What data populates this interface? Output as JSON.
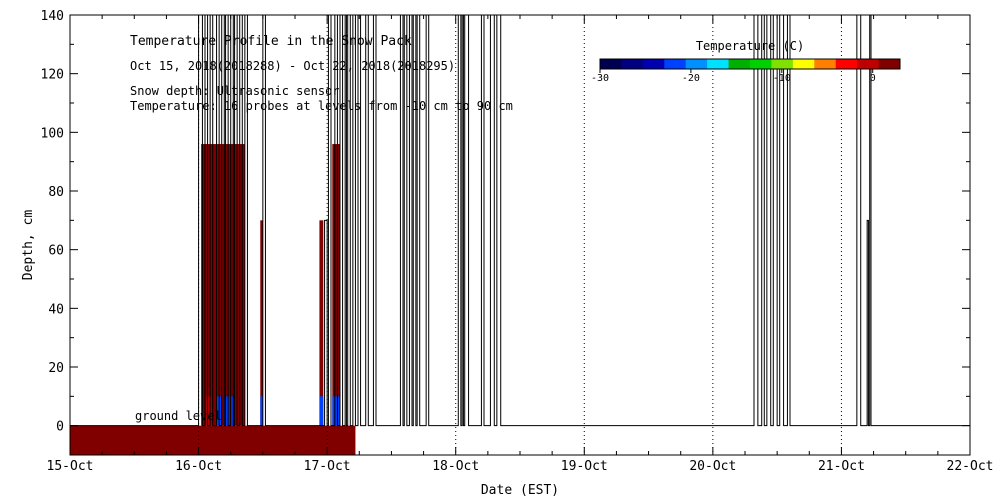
{
  "chart_data": {
    "type": "heatmap",
    "title": "Temperature Profile in the Snow Pack",
    "subtitle": "Oct 15, 2018(2018288) - Oct 22, 2018(2018295)",
    "notes": [
      "Snow depth: Ultrasonic sensor",
      "Temperature: 16 probes at levels from -10 cm to 90 cm"
    ],
    "ground_label": "ground level",
    "xlabel": "Date (EST)",
    "ylabel": "Depth, cm",
    "x_ticks": [
      "15-Oct",
      "16-Oct",
      "17-Oct",
      "18-Oct",
      "19-Oct",
      "20-Oct",
      "21-Oct",
      "22-Oct"
    ],
    "xlim_days": [
      0,
      7
    ],
    "ylim": [
      -10,
      140
    ],
    "y_ticks": [
      0,
      20,
      40,
      60,
      80,
      100,
      120,
      140
    ],
    "grid": false,
    "day_separators": "dotted",
    "colorbar": {
      "title": "Temperature (C)",
      "range": [
        -30,
        3
      ],
      "tick_values": [
        -30,
        -20,
        -10,
        0
      ],
      "tick_labels": [
        "-30",
        "-20",
        "-10",
        "0"
      ],
      "colors": [
        "#000050",
        "#000080",
        "#0000b0",
        "#0040ff",
        "#0090ff",
        "#00e0ff",
        "#00b000",
        "#00d000",
        "#80e000",
        "#ffff00",
        "#ff8000",
        "#ff0000",
        "#c00000",
        "#800000"
      ]
    },
    "snow_depth_trace": {
      "color": "#000000",
      "baseline_cm": 0,
      "spikes_start_day": [
        1.0,
        1.05,
        1.09,
        1.14,
        1.18,
        1.21,
        1.25,
        1.28,
        1.32,
        1.36,
        1.5,
        1.98,
        2.01,
        2.06,
        2.1,
        2.14,
        2.16,
        2.2,
        2.24,
        2.3,
        2.36,
        2.57,
        2.6,
        2.64,
        2.67,
        2.7,
        2.77,
        3.02,
        3.05,
        3.07,
        3.2,
        3.27,
        3.32,
        5.32,
        5.38,
        5.42,
        5.47,
        5.52,
        5.58,
        6.12,
        6.2,
        6.22
      ],
      "spikes_end_day": [
        1.03,
        1.07,
        1.11,
        1.16,
        1.2,
        1.23,
        1.27,
        1.3,
        1.34,
        1.38,
        1.52,
        2.0,
        2.03,
        2.08,
        2.12,
        2.15,
        2.18,
        2.22,
        2.26,
        2.32,
        2.38,
        2.59,
        2.62,
        2.66,
        2.69,
        2.72,
        2.79,
        3.04,
        3.06,
        3.1,
        3.22,
        3.3,
        3.35,
        5.35,
        5.4,
        5.45,
        5.5,
        5.55,
        5.6,
        6.15,
        6.21,
        6.23
      ],
      "spike_depth_cm": [
        140,
        140,
        140,
        140,
        140,
        140,
        140,
        140,
        140,
        140,
        140,
        70,
        140,
        140,
        140,
        140,
        140,
        140,
        140,
        140,
        140,
        140,
        140,
        140,
        140,
        140,
        140,
        140,
        140,
        140,
        140,
        140,
        140,
        140,
        140,
        140,
        140,
        140,
        140,
        140,
        70,
        140
      ]
    },
    "temperature_cells": {
      "ground_band": {
        "day_start": 0,
        "day_end": 2.22,
        "depth_bottom_cm": -10,
        "depth_top_cm": 0,
        "temperature_c": 1
      },
      "columns": [
        {
          "day_start": 1.02,
          "day_end": 1.12,
          "depth_bottom_cm": 0,
          "depth_top_cm": 96,
          "temperature_c": 1
        },
        {
          "day_start": 1.12,
          "day_end": 1.2,
          "depth_bottom_cm": 0,
          "depth_top_cm": 96,
          "temperature_c": 2
        },
        {
          "day_start": 1.2,
          "day_end": 1.28,
          "depth_bottom_cm": 0,
          "depth_top_cm": 96,
          "temperature_c": 1
        },
        {
          "day_start": 1.28,
          "day_end": 1.36,
          "depth_bottom_cm": 0,
          "depth_top_cm": 96,
          "temperature_c": 2
        },
        {
          "day_start": 1.06,
          "day_end": 1.1,
          "depth_bottom_cm": 0,
          "depth_top_cm": 10,
          "temperature_c": 0
        },
        {
          "day_start": 1.14,
          "day_end": 1.18,
          "depth_bottom_cm": 0,
          "depth_top_cm": 10,
          "temperature_c": -22
        },
        {
          "day_start": 1.2,
          "day_end": 1.24,
          "depth_bottom_cm": 0,
          "depth_top_cm": 10,
          "temperature_c": -22
        },
        {
          "day_start": 1.25,
          "day_end": 1.28,
          "depth_bottom_cm": 0,
          "depth_top_cm": 10,
          "temperature_c": -22
        },
        {
          "day_start": 1.48,
          "day_end": 1.5,
          "depth_bottom_cm": 0,
          "depth_top_cm": 70,
          "temperature_c": 1
        },
        {
          "day_start": 1.48,
          "day_end": 1.5,
          "depth_bottom_cm": 0,
          "depth_top_cm": 10,
          "temperature_c": -22
        },
        {
          "day_start": 1.94,
          "day_end": 1.97,
          "depth_bottom_cm": 0,
          "depth_top_cm": 70,
          "temperature_c": 1
        },
        {
          "day_start": 1.94,
          "day_end": 1.97,
          "depth_bottom_cm": 0,
          "depth_top_cm": 10,
          "temperature_c": -22
        },
        {
          "day_start": 2.04,
          "day_end": 2.1,
          "depth_bottom_cm": 0,
          "depth_top_cm": 96,
          "temperature_c": 2
        },
        {
          "day_start": 2.04,
          "day_end": 2.1,
          "depth_bottom_cm": 0,
          "depth_top_cm": 10,
          "temperature_c": -22
        }
      ]
    }
  }
}
